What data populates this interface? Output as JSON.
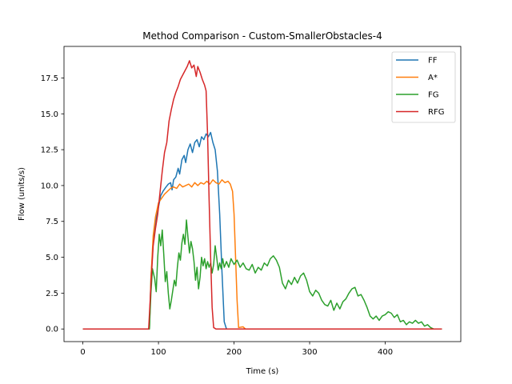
{
  "chart_data": {
    "type": "line",
    "title": "Method Comparison - Custom-SmallerObstacles-4",
    "xlabel": "Time (s)",
    "ylabel": "Flow (units/s)",
    "xlim": [
      -25,
      500
    ],
    "ylim": [
      -0.88,
      19.7
    ],
    "xticks": [
      0,
      100,
      200,
      300,
      400
    ],
    "xtick_labels": [
      "0",
      "100",
      "200",
      "300",
      "400"
    ],
    "yticks": [
      0.0,
      2.5,
      5.0,
      7.5,
      10.0,
      12.5,
      15.0,
      17.5
    ],
    "ytick_labels": [
      "0.0",
      "2.5",
      "5.0",
      "7.5",
      "10.0",
      "12.5",
      "15.0",
      "17.5"
    ],
    "grid": false,
    "legend_position": "top-right",
    "series": [
      {
        "name": "FF",
        "color": "#1f77b4",
        "points": [
          [
            0,
            0
          ],
          [
            88,
            0
          ],
          [
            90,
            3.5
          ],
          [
            93,
            6.0
          ],
          [
            96,
            7.5
          ],
          [
            100,
            8.5
          ],
          [
            103,
            9.3
          ],
          [
            106,
            9.6
          ],
          [
            110,
            9.9
          ],
          [
            113,
            10.1
          ],
          [
            116,
            10.2
          ],
          [
            118,
            9.7
          ],
          [
            120,
            10.4
          ],
          [
            123,
            10.6
          ],
          [
            126,
            11.2
          ],
          [
            128,
            10.8
          ],
          [
            131,
            11.8
          ],
          [
            134,
            12.1
          ],
          [
            136,
            11.6
          ],
          [
            139,
            12.5
          ],
          [
            142,
            12.9
          ],
          [
            145,
            12.3
          ],
          [
            148,
            13.0
          ],
          [
            151,
            13.2
          ],
          [
            154,
            12.7
          ],
          [
            157,
            13.4
          ],
          [
            160,
            13.2
          ],
          [
            163,
            13.6
          ],
          [
            166,
            13.4
          ],
          [
            169,
            13.7
          ],
          [
            172,
            13.0
          ],
          [
            175,
            12.5
          ],
          [
            178,
            11.0
          ],
          [
            181,
            8.0
          ],
          [
            184,
            4.0
          ],
          [
            187,
            0.5
          ],
          [
            190,
            0
          ],
          [
            475,
            0
          ]
        ]
      },
      {
        "name": "A*",
        "color": "#ff7f0e",
        "points": [
          [
            0,
            0
          ],
          [
            88,
            0
          ],
          [
            90,
            3.5
          ],
          [
            93,
            6.5
          ],
          [
            96,
            7.8
          ],
          [
            100,
            8.8
          ],
          [
            104,
            9.1
          ],
          [
            108,
            9.4
          ],
          [
            112,
            9.6
          ],
          [
            116,
            9.8
          ],
          [
            120,
            9.9
          ],
          [
            124,
            9.8
          ],
          [
            128,
            10.1
          ],
          [
            132,
            9.9
          ],
          [
            136,
            10.0
          ],
          [
            140,
            10.1
          ],
          [
            144,
            9.9
          ],
          [
            148,
            10.2
          ],
          [
            152,
            10.0
          ],
          [
            156,
            10.2
          ],
          [
            160,
            10.1
          ],
          [
            164,
            10.3
          ],
          [
            168,
            10.1
          ],
          [
            172,
            10.4
          ],
          [
            176,
            10.2
          ],
          [
            180,
            10.1
          ],
          [
            184,
            10.4
          ],
          [
            188,
            10.2
          ],
          [
            192,
            10.3
          ],
          [
            195,
            10.1
          ],
          [
            198,
            9.6
          ],
          [
            200,
            8.0
          ],
          [
            202,
            5.0
          ],
          [
            204,
            2.0
          ],
          [
            206,
            0.1
          ],
          [
            212,
            0.15
          ],
          [
            215,
            0
          ],
          [
            475,
            0
          ]
        ]
      },
      {
        "name": "FG",
        "color": "#2ca02c",
        "points": [
          [
            0,
            0
          ],
          [
            88,
            0
          ],
          [
            90,
            2.5
          ],
          [
            92,
            4.2
          ],
          [
            95,
            3.5
          ],
          [
            97,
            2.6
          ],
          [
            99,
            5.0
          ],
          [
            101,
            6.6
          ],
          [
            103,
            5.8
          ],
          [
            105,
            6.9
          ],
          [
            107,
            5.2
          ],
          [
            109,
            3.3
          ],
          [
            111,
            4.0
          ],
          [
            113,
            2.5
          ],
          [
            115,
            1.4
          ],
          [
            117,
            2.0
          ],
          [
            119,
            2.7
          ],
          [
            121,
            3.4
          ],
          [
            123,
            3.0
          ],
          [
            125,
            4.3
          ],
          [
            127,
            5.3
          ],
          [
            129,
            4.8
          ],
          [
            131,
            6.0
          ],
          [
            133,
            6.6
          ],
          [
            135,
            5.9
          ],
          [
            137,
            7.6
          ],
          [
            139,
            6.4
          ],
          [
            141,
            5.3
          ],
          [
            143,
            6.1
          ],
          [
            145,
            5.6
          ],
          [
            147,
            4.7
          ],
          [
            149,
            3.4
          ],
          [
            151,
            4.3
          ],
          [
            153,
            2.8
          ],
          [
            155,
            3.6
          ],
          [
            157,
            5.0
          ],
          [
            159,
            4.4
          ],
          [
            161,
            4.9
          ],
          [
            163,
            4.2
          ],
          [
            165,
            4.7
          ],
          [
            167,
            4.3
          ],
          [
            169,
            4.6
          ],
          [
            171,
            3.9
          ],
          [
            173,
            4.5
          ],
          [
            175,
            5.8
          ],
          [
            177,
            5.0
          ],
          [
            179,
            4.1
          ],
          [
            181,
            4.6
          ],
          [
            183,
            4.2
          ],
          [
            185,
            4.9
          ],
          [
            187,
            4.3
          ],
          [
            190,
            4.7
          ],
          [
            193,
            4.3
          ],
          [
            196,
            4.9
          ],
          [
            200,
            4.5
          ],
          [
            204,
            4.8
          ],
          [
            208,
            4.3
          ],
          [
            212,
            4.6
          ],
          [
            216,
            4.2
          ],
          [
            220,
            4.1
          ],
          [
            224,
            4.5
          ],
          [
            228,
            3.9
          ],
          [
            232,
            4.3
          ],
          [
            236,
            4.1
          ],
          [
            240,
            4.6
          ],
          [
            244,
            4.4
          ],
          [
            248,
            4.9
          ],
          [
            252,
            5.1
          ],
          [
            256,
            4.8
          ],
          [
            260,
            4.3
          ],
          [
            264,
            3.2
          ],
          [
            268,
            2.8
          ],
          [
            272,
            3.4
          ],
          [
            276,
            3.1
          ],
          [
            280,
            3.6
          ],
          [
            284,
            3.2
          ],
          [
            288,
            3.7
          ],
          [
            292,
            3.9
          ],
          [
            296,
            3.4
          ],
          [
            300,
            2.6
          ],
          [
            304,
            2.3
          ],
          [
            308,
            2.7
          ],
          [
            312,
            2.5
          ],
          [
            316,
            2.0
          ],
          [
            320,
            1.7
          ],
          [
            324,
            1.6
          ],
          [
            328,
            2.0
          ],
          [
            332,
            1.3
          ],
          [
            336,
            1.8
          ],
          [
            340,
            1.4
          ],
          [
            344,
            1.9
          ],
          [
            348,
            2.1
          ],
          [
            352,
            2.5
          ],
          [
            356,
            2.8
          ],
          [
            360,
            2.9
          ],
          [
            364,
            2.3
          ],
          [
            368,
            2.4
          ],
          [
            372,
            2.0
          ],
          [
            376,
            1.5
          ],
          [
            380,
            0.9
          ],
          [
            384,
            0.7
          ],
          [
            388,
            0.9
          ],
          [
            392,
            0.6
          ],
          [
            396,
            0.9
          ],
          [
            400,
            1.0
          ],
          [
            404,
            1.2
          ],
          [
            408,
            1.1
          ],
          [
            412,
            0.8
          ],
          [
            416,
            1.0
          ],
          [
            420,
            0.5
          ],
          [
            424,
            0.6
          ],
          [
            428,
            0.3
          ],
          [
            432,
            0.5
          ],
          [
            436,
            0.4
          ],
          [
            440,
            0.6
          ],
          [
            444,
            0.4
          ],
          [
            448,
            0.5
          ],
          [
            452,
            0.2
          ],
          [
            456,
            0.3
          ],
          [
            460,
            0.1
          ],
          [
            464,
            0
          ],
          [
            475,
            0
          ]
        ]
      },
      {
        "name": "RFG",
        "color": "#d62728",
        "points": [
          [
            0,
            0
          ],
          [
            87,
            0
          ],
          [
            89,
            2.0
          ],
          [
            91,
            4.0
          ],
          [
            93,
            5.8
          ],
          [
            96,
            7.0
          ],
          [
            99,
            8.0
          ],
          [
            102,
            9.5
          ],
          [
            105,
            11.0
          ],
          [
            108,
            12.3
          ],
          [
            111,
            13.0
          ],
          [
            114,
            14.5
          ],
          [
            117,
            15.3
          ],
          [
            120,
            16.0
          ],
          [
            123,
            16.5
          ],
          [
            126,
            16.9
          ],
          [
            129,
            17.4
          ],
          [
            132,
            17.7
          ],
          [
            135,
            18.0
          ],
          [
            138,
            18.3
          ],
          [
            141,
            18.7
          ],
          [
            144,
            18.2
          ],
          [
            147,
            18.4
          ],
          [
            150,
            17.6
          ],
          [
            152,
            18.3
          ],
          [
            155,
            17.9
          ],
          [
            158,
            17.4
          ],
          [
            161,
            17.0
          ],
          [
            163,
            16.6
          ],
          [
            165,
            13.5
          ],
          [
            167,
            9.0
          ],
          [
            169,
            5.0
          ],
          [
            171,
            1.5
          ],
          [
            173,
            0.1
          ],
          [
            176,
            0
          ],
          [
            475,
            0
          ]
        ]
      }
    ]
  }
}
